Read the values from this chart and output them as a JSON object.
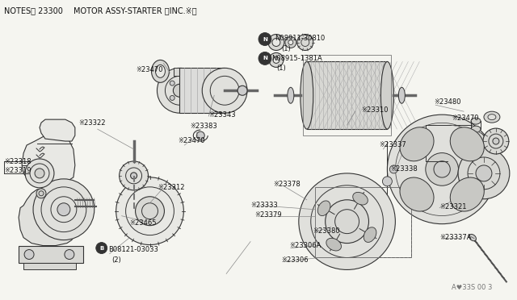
{
  "bg_color": "#f5f5f0",
  "line_color": "#333333",
  "text_color": "#111111",
  "fig_width": 6.4,
  "fig_height": 3.72,
  "dpi": 100,
  "title_left": "NOTES゙ 23300",
  "title_right": "MOTOR ASSY-STARTER 〈INC.※〉",
  "watermark": "A♥33S 00 3"
}
